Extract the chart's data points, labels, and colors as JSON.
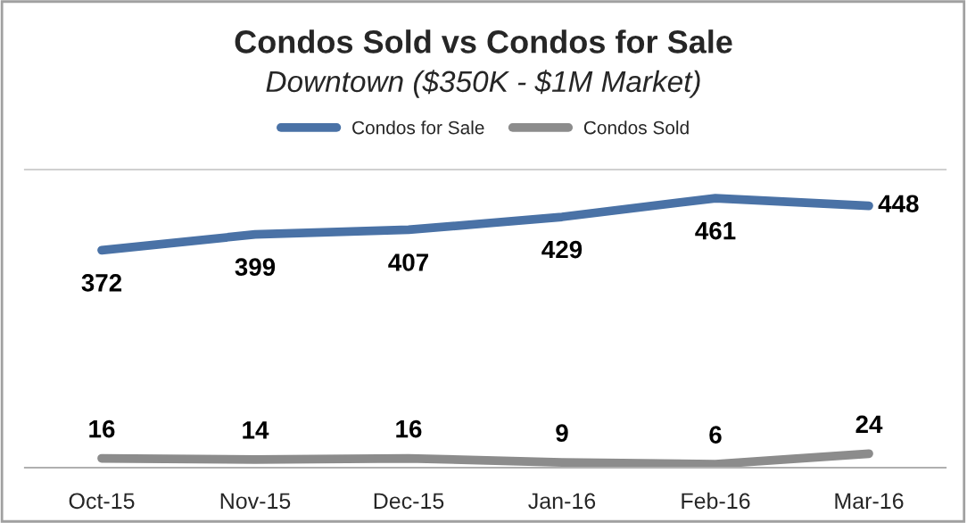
{
  "chart_data": {
    "type": "line",
    "title": "Condos Sold vs Condos for Sale",
    "subtitle": "Downtown ($350K - $1M Market)",
    "categories": [
      "Oct-15",
      "Nov-15",
      "Dec-15",
      "Jan-16",
      "Feb-16",
      "Mar-16"
    ],
    "series": [
      {
        "name": "Condos for Sale",
        "color": "#4a72a6",
        "values": [
          372,
          399,
          407,
          429,
          461,
          448
        ]
      },
      {
        "name": "Condos Sold",
        "color": "#8c8c8c",
        "values": [
          16,
          14,
          16,
          9,
          6,
          24
        ]
      }
    ],
    "ylim": [
      0,
      510
    ],
    "tick_labels": "x",
    "data_labels": true,
    "legend": "top",
    "grid": false,
    "marker": "none",
    "line_style": "solid"
  }
}
